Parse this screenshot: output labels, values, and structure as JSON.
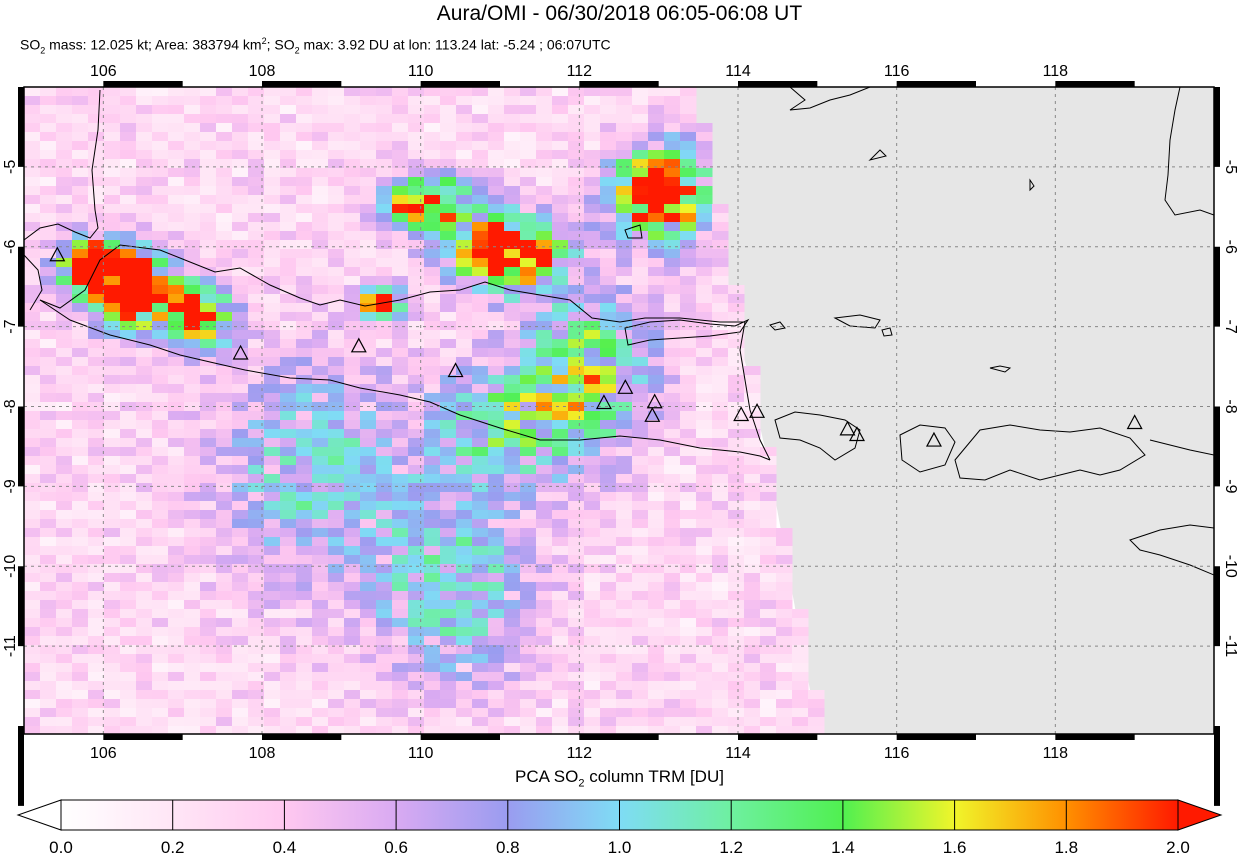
{
  "header": {
    "title": "Aura/OMI - 06/30/2018 06:05-06:08 UT",
    "subtitle": {
      "mass_prefix": "SO",
      "mass_sub": "2",
      "mass_text": " mass: 12.025 kt; Area: 383794 km",
      "area_sup": "2",
      "max_prefix": "; SO",
      "max_sub": "2",
      "max_text": " max: 3.92 DU at lon: 113.24 lat: -5.24 ; 06:07UTC"
    }
  },
  "map": {
    "lon_range": [
      105,
      120
    ],
    "lat_range": [
      -12.1,
      -4.0
    ],
    "lon_ticks": [
      "106",
      "108",
      "110",
      "112",
      "114",
      "116",
      "118"
    ],
    "lat_ticks": [
      "-5",
      "-6",
      "-7",
      "-8",
      "-9",
      "-10",
      "-11"
    ],
    "grid": "dotted",
    "no_data_color": "#e6e6e6",
    "volcano_marker": "triangle-icon",
    "volcanoes": [
      [
        105.42,
        -6.1
      ],
      [
        107.73,
        -7.33
      ],
      [
        109.22,
        -7.24
      ],
      [
        110.44,
        -7.55
      ],
      [
        112.31,
        -7.95
      ],
      [
        112.58,
        -7.76
      ],
      [
        112.95,
        -7.94
      ],
      [
        112.92,
        -8.11
      ],
      [
        114.04,
        -8.1
      ],
      [
        114.24,
        -8.06
      ],
      [
        115.38,
        -8.28
      ],
      [
        115.5,
        -8.35
      ],
      [
        116.47,
        -8.42
      ],
      [
        119.0,
        -8.2
      ]
    ]
  },
  "colorbar": {
    "title_prefix": "PCA SO",
    "title_sub": "2",
    "title_suffix": " column TRM [DU]",
    "min": 0.0,
    "max": 2.0,
    "ticks": [
      "0.0",
      "0.2",
      "0.4",
      "0.6",
      "0.8",
      "1.0",
      "1.2",
      "1.4",
      "1.6",
      "1.8",
      "2.0"
    ],
    "colors": [
      "#ffffff",
      "#ffd6f0",
      "#e6b0f0",
      "#9a9cf0",
      "#7fb0f0",
      "#7ff5f5",
      "#50f050",
      "#f5f52a",
      "#ff8c00",
      "#ff1a00"
    ]
  }
}
